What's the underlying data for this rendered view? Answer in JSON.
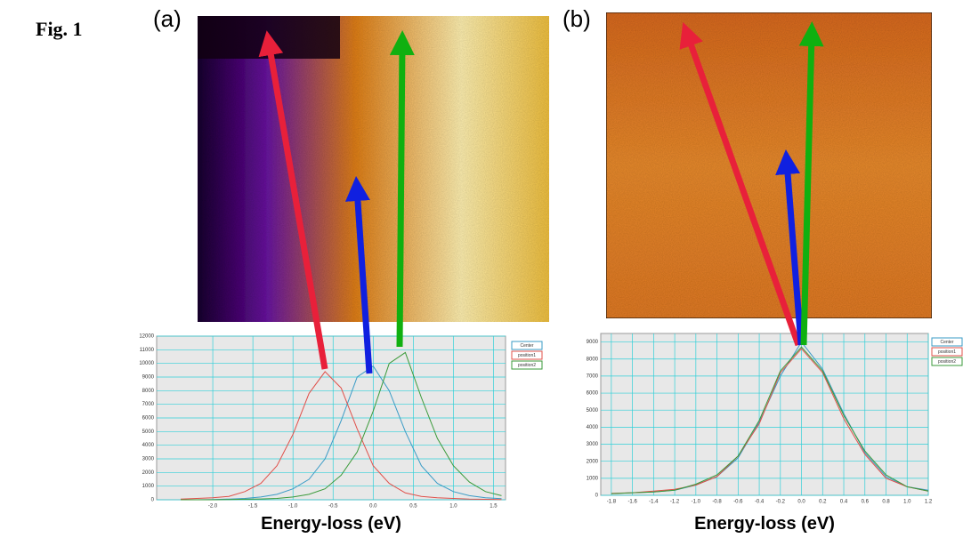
{
  "figure_label": "Fig. 1",
  "chart_data": [
    {
      "type": "line",
      "panel_label": "(a)",
      "x_label": "Energy-loss (eV)",
      "x": [
        -2.4,
        -2.2,
        -2.0,
        -1.8,
        -1.6,
        -1.4,
        -1.2,
        -1.0,
        -0.8,
        -0.6,
        -0.4,
        -0.2,
        0,
        0.2,
        0.4,
        0.6,
        0.8,
        1.0,
        1.2,
        1.4,
        1.6
      ],
      "series": [
        {
          "name": "Center",
          "color": "#3a9bc6",
          "values": [
            0,
            0,
            20,
            50,
            100,
            200,
            400,
            800,
            1500,
            3000,
            5800,
            9000,
            9800,
            8000,
            5000,
            2500,
            1200,
            600,
            300,
            150,
            80
          ]
        },
        {
          "name": "position1",
          "color": "#e0504a",
          "values": [
            50,
            100,
            150,
            250,
            600,
            1200,
            2500,
            4800,
            7800,
            9400,
            8200,
            5200,
            2500,
            1200,
            500,
            250,
            150,
            100,
            50,
            30,
            20
          ]
        },
        {
          "name": "position2",
          "color": "#3a9a3a",
          "values": [
            0,
            0,
            0,
            20,
            40,
            60,
            100,
            200,
            400,
            800,
            1800,
            3500,
            6500,
            10000,
            10800,
            7500,
            4500,
            2500,
            1300,
            600,
            300
          ]
        }
      ],
      "xlim": [
        -2.7,
        1.65
      ],
      "ylim": [
        0,
        12000
      ],
      "xticks": [
        {
          "value": -2,
          "label": "-2.0"
        },
        -1.5,
        {
          "value": -1,
          "label": "-1.0"
        },
        -0.5,
        {
          "value": 0,
          "label": "0.0"
        },
        0.5,
        {
          "value": 1,
          "label": "1.0"
        },
        1.5
      ],
      "yticks": [
        0,
        1000,
        2000,
        3000,
        4000,
        5000,
        6000,
        7000,
        8000,
        9000,
        10000,
        11000,
        12000
      ],
      "grid": true,
      "legend": "right"
    },
    {
      "type": "line",
      "panel_label": "(b)",
      "x_label": "Energy-loss (eV)",
      "x": [
        -1.8,
        -1.6,
        -1.4,
        -1.2,
        -1.0,
        -0.8,
        -0.6,
        -0.4,
        -0.2,
        0,
        0.2,
        0.4,
        0.6,
        0.8,
        1.0,
        1.2
      ],
      "series": [
        {
          "name": "Center",
          "color": "#3a9bc6",
          "values": [
            100,
            150,
            200,
            300,
            600,
            1100,
            2200,
            4300,
            7000,
            9000,
            7400,
            4800,
            2500,
            1100,
            500,
            300
          ]
        },
        {
          "name": "position1",
          "color": "#e0504a",
          "values": [
            120,
            150,
            250,
            350,
            600,
            1100,
            2300,
            4200,
            7200,
            8600,
            7200,
            4500,
            2400,
            1000,
            500,
            250
          ]
        },
        {
          "name": "position2",
          "color": "#3a9a3a",
          "values": [
            100,
            150,
            200,
            300,
            650,
            1200,
            2300,
            4400,
            7300,
            8700,
            7300,
            4700,
            2600,
            1200,
            500,
            250
          ]
        }
      ],
      "xlim": [
        -1.9,
        1.2
      ],
      "ylim": [
        0,
        9500
      ],
      "xticks": [
        -1.8,
        -1.6,
        -1.4,
        -1.2,
        {
          "value": -1,
          "label": "-1.0"
        },
        -0.8,
        -0.6,
        -0.4,
        -0.2,
        {
          "value": 0,
          "label": "0.0"
        },
        0.2,
        0.4,
        0.6,
        0.8,
        {
          "value": 1,
          "label": "1.0"
        },
        1.2
      ],
      "yticks": [
        0,
        1000,
        2000,
        3000,
        4000,
        5000,
        6000,
        7000,
        8000,
        9000
      ],
      "grid": true,
      "legend": "right"
    }
  ]
}
